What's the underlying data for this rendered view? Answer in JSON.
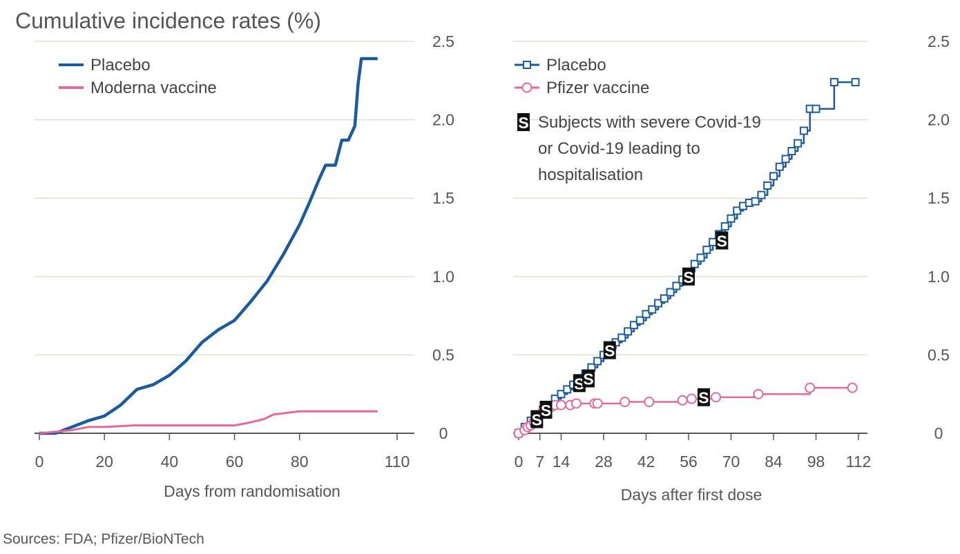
{
  "title": "Cumulative incidence rates (%)",
  "source": "Sources: FDA; Pfizer/BioNTech",
  "colors": {
    "placebo": "#1a5aa0",
    "vaccine": "#e8679a",
    "grid": "#e3dccf",
    "axis": "#555555",
    "badge": "#111111"
  },
  "chart_data": [
    {
      "type": "line",
      "xlabel": "Days from randomisation",
      "ylabel": "",
      "xlim": [
        0,
        110
      ],
      "ylim": [
        0,
        2.5
      ],
      "xticks": [
        0,
        20,
        40,
        60,
        80,
        110
      ],
      "yticks": [
        0,
        0.5,
        1.0,
        1.5,
        2.0,
        2.5
      ],
      "ytick_labels": [
        "0",
        "0.5",
        "1.0",
        "1.5",
        "2.0",
        "2.5"
      ],
      "legend_position": "top-left",
      "series": [
        {
          "name": "Placebo",
          "color": "#1a5aa0",
          "marker": "none",
          "x": [
            0,
            5,
            10,
            15,
            20,
            25,
            30,
            35,
            40,
            45,
            50,
            55,
            60,
            65,
            70,
            75,
            80,
            83,
            86,
            88,
            91,
            93,
            95,
            97,
            98,
            99,
            104
          ],
          "y": [
            0,
            0,
            0.04,
            0.08,
            0.11,
            0.18,
            0.28,
            0.31,
            0.37,
            0.46,
            0.58,
            0.66,
            0.72,
            0.84,
            0.97,
            1.14,
            1.33,
            1.47,
            1.62,
            1.71,
            1.71,
            1.87,
            1.87,
            1.96,
            2.23,
            2.39,
            2.39
          ]
        },
        {
          "name": "Moderna vaccine",
          "color": "#e8679a",
          "marker": "none",
          "x": [
            0,
            10,
            15,
            20,
            29,
            40,
            50,
            60,
            65,
            69,
            72,
            80,
            90,
            104
          ],
          "y": [
            0,
            0.02,
            0.04,
            0.04,
            0.05,
            0.05,
            0.05,
            0.05,
            0.07,
            0.09,
            0.12,
            0.14,
            0.14,
            0.14
          ]
        }
      ]
    },
    {
      "type": "line",
      "xlabel": "Days after first dose",
      "ylabel": "",
      "xlim": [
        0,
        112
      ],
      "ylim": [
        0,
        2.5
      ],
      "xticks": [
        0,
        7,
        14,
        28,
        42,
        56,
        70,
        84,
        98,
        112
      ],
      "yticks": [
        0,
        0.5,
        1.0,
        1.5,
        2.0,
        2.5
      ],
      "ytick_labels": [
        "0",
        "0.5",
        "1.0",
        "1.5",
        "2.0",
        "2.5"
      ],
      "legend_position": "top-left",
      "severe_legend": "Subjects with severe Covid-19\nor Covid-19 leading to\nhospitalisation",
      "series": [
        {
          "name": "Placebo",
          "color": "#1a5aa0",
          "marker": "square",
          "x": [
            0,
            2,
            4,
            6,
            8,
            10,
            12,
            14,
            16,
            18,
            20,
            22,
            24,
            26,
            28,
            30,
            32,
            34,
            36,
            38,
            40,
            42,
            44,
            46,
            48,
            50,
            52,
            54,
            56,
            58,
            60,
            62,
            64,
            66,
            68,
            70,
            72,
            74,
            76,
            78,
            80,
            82,
            84,
            86,
            88,
            90,
            92,
            94,
            96,
            98,
            104,
            111
          ],
          "y": [
            0,
            0.04,
            0.08,
            0.11,
            0.15,
            0.18,
            0.22,
            0.25,
            0.28,
            0.31,
            0.35,
            0.38,
            0.42,
            0.46,
            0.5,
            0.54,
            0.58,
            0.61,
            0.65,
            0.69,
            0.72,
            0.76,
            0.79,
            0.83,
            0.86,
            0.9,
            0.94,
            0.98,
            1.03,
            1.08,
            1.12,
            1.17,
            1.22,
            1.27,
            1.32,
            1.37,
            1.42,
            1.45,
            1.47,
            1.48,
            1.52,
            1.58,
            1.64,
            1.7,
            1.75,
            1.8,
            1.85,
            1.93,
            2.07,
            2.07,
            2.24,
            2.24
          ]
        },
        {
          "name": "Pfizer vaccine",
          "color": "#e8679a",
          "marker": "circle",
          "x": [
            0,
            2,
            3,
            4,
            5,
            6,
            7,
            8,
            9,
            11,
            12,
            14,
            17,
            19,
            25,
            26,
            35,
            43,
            54,
            57,
            65,
            79,
            96,
            110
          ],
          "y": [
            0,
            0.02,
            0.04,
            0.05,
            0.07,
            0.09,
            0.12,
            0.14,
            0.16,
            0.17,
            0.18,
            0.18,
            0.18,
            0.19,
            0.19,
            0.19,
            0.2,
            0.2,
            0.21,
            0.22,
            0.23,
            0.25,
            0.29,
            0.29
          ]
        }
      ],
      "severe_cases": [
        {
          "series": "Placebo",
          "x": 6,
          "y": 0.09
        },
        {
          "series": "Placebo",
          "x": 9,
          "y": 0.15
        },
        {
          "series": "Placebo",
          "x": 20,
          "y": 0.32
        },
        {
          "series": "Placebo",
          "x": 23,
          "y": 0.35
        },
        {
          "series": "Placebo",
          "x": 30,
          "y": 0.53
        },
        {
          "series": "Placebo",
          "x": 56,
          "y": 1.0
        },
        {
          "series": "Placebo",
          "x": 67,
          "y": 1.23
        },
        {
          "series": "Pfizer vaccine",
          "x": 61,
          "y": 0.23
        }
      ]
    }
  ]
}
